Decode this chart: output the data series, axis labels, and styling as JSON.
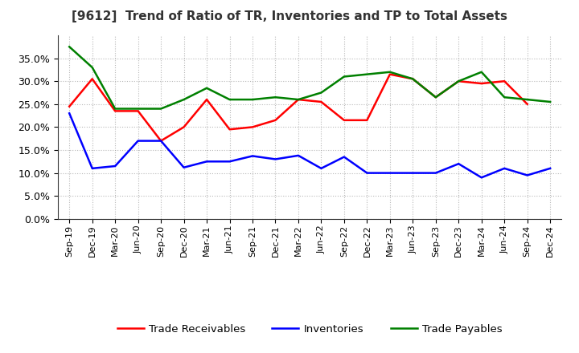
{
  "title": "[9612]  Trend of Ratio of TR, Inventories and TP to Total Assets",
  "x_labels": [
    "Sep-19",
    "Dec-19",
    "Mar-20",
    "Jun-20",
    "Sep-20",
    "Dec-20",
    "Mar-21",
    "Jun-21",
    "Sep-21",
    "Dec-21",
    "Mar-22",
    "Jun-22",
    "Sep-22",
    "Dec-22",
    "Mar-23",
    "Jun-23",
    "Sep-23",
    "Dec-23",
    "Mar-24",
    "Jun-24",
    "Sep-24",
    "Dec-24"
  ],
  "trade_receivables": [
    0.245,
    0.305,
    0.235,
    0.235,
    0.17,
    0.2,
    0.26,
    0.195,
    0.2,
    0.215,
    0.26,
    0.255,
    0.215,
    0.215,
    0.315,
    0.305,
    0.265,
    0.3,
    0.295,
    0.3,
    0.25,
    null
  ],
  "inventories": [
    0.23,
    0.11,
    0.115,
    0.17,
    0.17,
    0.112,
    0.125,
    0.125,
    0.137,
    0.13,
    0.138,
    0.11,
    0.135,
    0.1,
    0.1,
    0.1,
    0.1,
    0.12,
    0.09,
    0.11,
    0.095,
    0.11
  ],
  "trade_payables": [
    0.375,
    0.33,
    0.24,
    0.24,
    0.24,
    0.26,
    0.285,
    0.26,
    0.26,
    0.265,
    0.26,
    0.275,
    0.31,
    0.315,
    0.32,
    0.305,
    0.265,
    0.3,
    0.32,
    0.265,
    0.26,
    0.255
  ],
  "tr_color": "#ff0000",
  "inv_color": "#0000ff",
  "tp_color": "#008000",
  "ylim": [
    0.0,
    0.4
  ],
  "yticks": [
    0.0,
    0.05,
    0.1,
    0.15,
    0.2,
    0.25,
    0.3,
    0.35
  ],
  "background_color": "#ffffff",
  "grid_color": "#999999",
  "legend_labels": [
    "Trade Receivables",
    "Inventories",
    "Trade Payables"
  ]
}
